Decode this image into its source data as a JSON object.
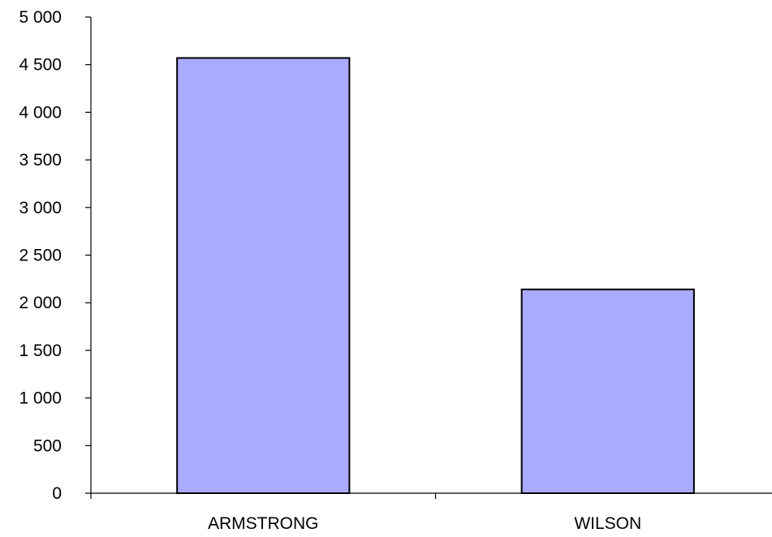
{
  "chart_data": {
    "type": "bar",
    "categories": [
      "ARMSTRONG",
      "WILSON"
    ],
    "values": [
      4570,
      2140
    ],
    "ylim": [
      0,
      5000
    ],
    "ytick_values": [
      0,
      500,
      1000,
      1500,
      2000,
      2500,
      3000,
      3500,
      4000,
      4500,
      5000
    ],
    "ytick_labels": [
      "0",
      "500",
      "1 000",
      "1 500",
      "2 000",
      "2 500",
      "3 000",
      "3 500",
      "4 000",
      "4 500",
      "5 000"
    ],
    "title": "",
    "xlabel": "",
    "ylabel": "",
    "grid": false,
    "legend": "none",
    "bar_color": "#aaaaff",
    "bar_edge_color": "#000000"
  }
}
